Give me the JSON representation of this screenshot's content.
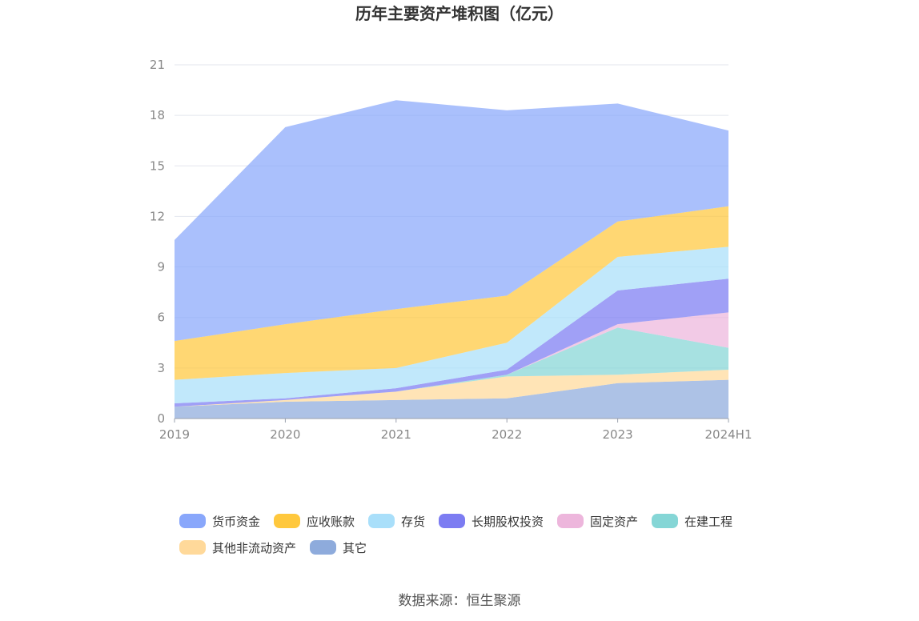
{
  "chart_data": {
    "type": "area",
    "stacked": true,
    "title": "历年主要资产堆积图（亿元）",
    "source": "数据来源：恒生聚源",
    "categories": [
      "2019",
      "2020",
      "2021",
      "2022",
      "2023",
      "2024H1"
    ],
    "ylim": [
      0,
      21
    ],
    "yticks": [
      "0",
      "3",
      "6",
      "9",
      "12",
      "15",
      "18",
      "21"
    ],
    "grid": true,
    "legend_position": "bottom",
    "series": [
      {
        "name": "其它",
        "color": "#8EABDC",
        "values": [
          0.7,
          1.0,
          1.1,
          1.2,
          2.1,
          2.3
        ]
      },
      {
        "name": "其他非流动资产",
        "color": "#FFD99A",
        "values": [
          0.0,
          0.1,
          0.5,
          1.3,
          0.5,
          0.6
        ]
      },
      {
        "name": "在建工程",
        "color": "#85D6D6",
        "values": [
          0.0,
          0.0,
          0.0,
          0.1,
          2.8,
          1.3
        ]
      },
      {
        "name": "固定资产",
        "color": "#EDB6DC",
        "values": [
          0.0,
          0.0,
          0.0,
          0.0,
          0.2,
          2.1
        ]
      },
      {
        "name": "长期股权投资",
        "color": "#7C7CF2",
        "values": [
          0.2,
          0.1,
          0.2,
          0.3,
          2.0,
          2.0
        ]
      },
      {
        "name": "存货",
        "color": "#A9DFFA",
        "values": [
          1.4,
          1.5,
          1.2,
          1.6,
          2.0,
          1.9
        ]
      },
      {
        "name": "应收账款",
        "color": "#FFC83D",
        "values": [
          2.3,
          2.9,
          3.5,
          2.8,
          2.1,
          2.4
        ]
      },
      {
        "name": "货币资金",
        "color": "#89A7FB",
        "values": [
          6.0,
          11.7,
          12.4,
          11.0,
          7.0,
          4.5
        ]
      }
    ],
    "legend_order": [
      "货币资金",
      "应收账款",
      "存货",
      "长期股权投资",
      "固定资产",
      "在建工程",
      "其他非流动资产",
      "其它"
    ]
  }
}
